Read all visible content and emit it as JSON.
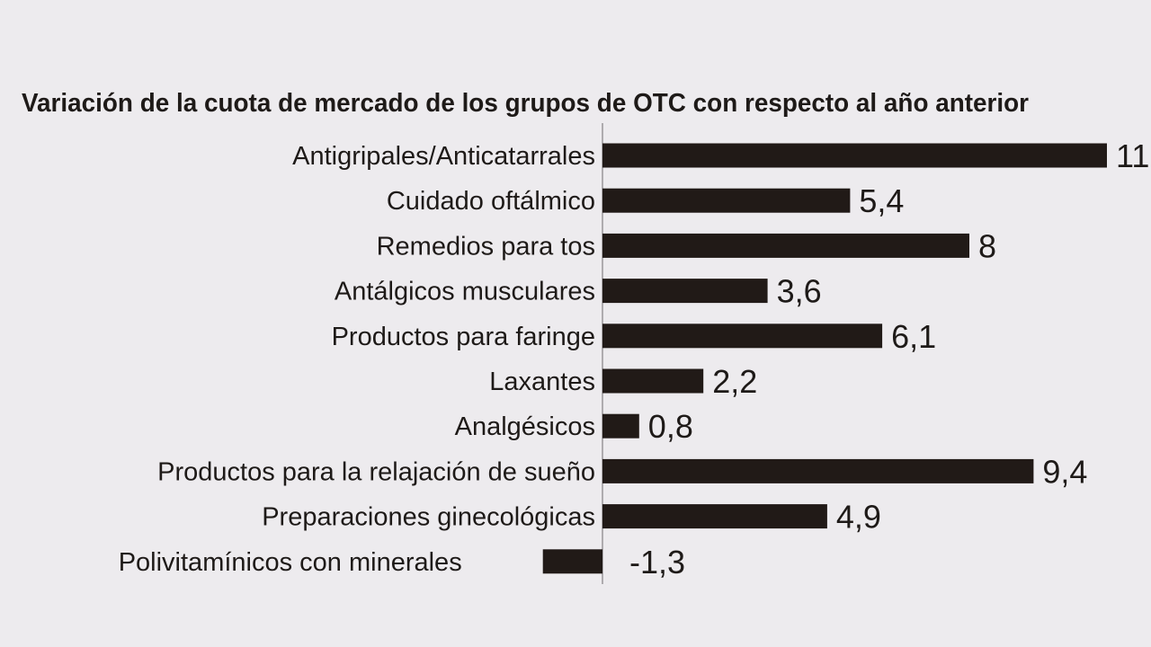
{
  "chart_data": {
    "type": "bar",
    "orientation": "horizontal",
    "title": "Variación de la cuota de mercado de los grupos de OTC con respecto al año anterior",
    "categories": [
      "Antigripales/Anticatarrales",
      "Cuidado oftálmico",
      "Remedios para tos",
      "Antálgicos musculares",
      "Productos para faringe",
      "Laxantes",
      "Analgésicos",
      "Productos para la relajación de sueño",
      "Preparaciones ginecológicas",
      "Polivitamínicos con minerales"
    ],
    "values": [
      11,
      5.4,
      8,
      3.6,
      6.1,
      2.2,
      0.8,
      9.4,
      4.9,
      -1.3
    ],
    "value_labels": [
      "11",
      "5,4",
      "8",
      "3,6",
      "6,1",
      "2,2",
      "0,8",
      "9,4",
      "4,9",
      "-1,3"
    ],
    "xlim": [
      -1.3,
      11
    ],
    "grid": false,
    "legend": "none"
  },
  "colors": {
    "background": "#edebee",
    "bar": "#211a17",
    "text": "#1e1a18",
    "axis": "#9a9699"
  }
}
